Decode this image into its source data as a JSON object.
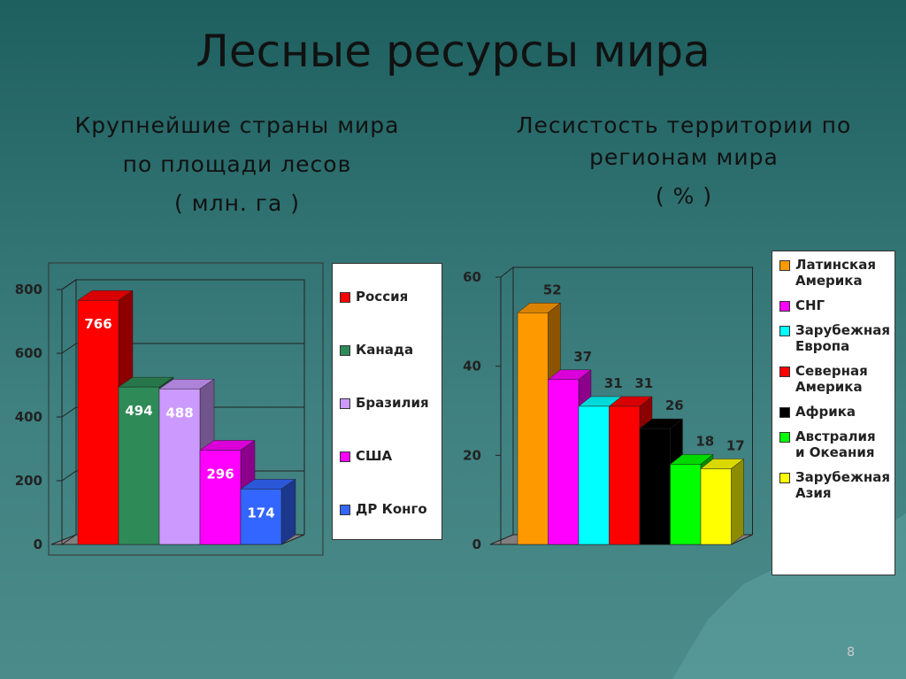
{
  "title": "Лесные  ресурсы  мира",
  "page_number": "8",
  "chart_data": [
    {
      "type": "bar",
      "title": [
        "Крупнейшие  страны  мира",
        "по  площади   лесов",
        "( млн.  га )"
      ],
      "categories": [
        "Россия",
        "Канада",
        "Бразилия",
        "США",
        "ДР Конго"
      ],
      "values": [
        766,
        494,
        488,
        296,
        174
      ],
      "colors": [
        "#ff0000",
        "#2e8b57",
        "#cc99ff",
        "#ff00ff",
        "#3366ff"
      ],
      "ylim": [
        0,
        800
      ],
      "yticks": [
        0,
        200,
        400,
        600,
        800
      ],
      "grid": true
    },
    {
      "type": "bar",
      "title": [
        "Лесистость  территории  по",
        "регионам  мира",
        "( % )"
      ],
      "categories": [
        "Латинская Америка",
        "СНГ",
        "Зарубежная Европа",
        "Северная Америка",
        "Африка",
        "Австралия и Океания",
        "Зарубежная Азия"
      ],
      "values": [
        52,
        37,
        31,
        31,
        26,
        18,
        17
      ],
      "colors": [
        "#ff9900",
        "#ff00ff",
        "#00ffff",
        "#ff0000",
        "#000000",
        "#00ff00",
        "#ffff00"
      ],
      "ylim": [
        0,
        60
      ],
      "yticks": [
        0,
        20,
        40,
        60
      ],
      "grid": false
    }
  ]
}
